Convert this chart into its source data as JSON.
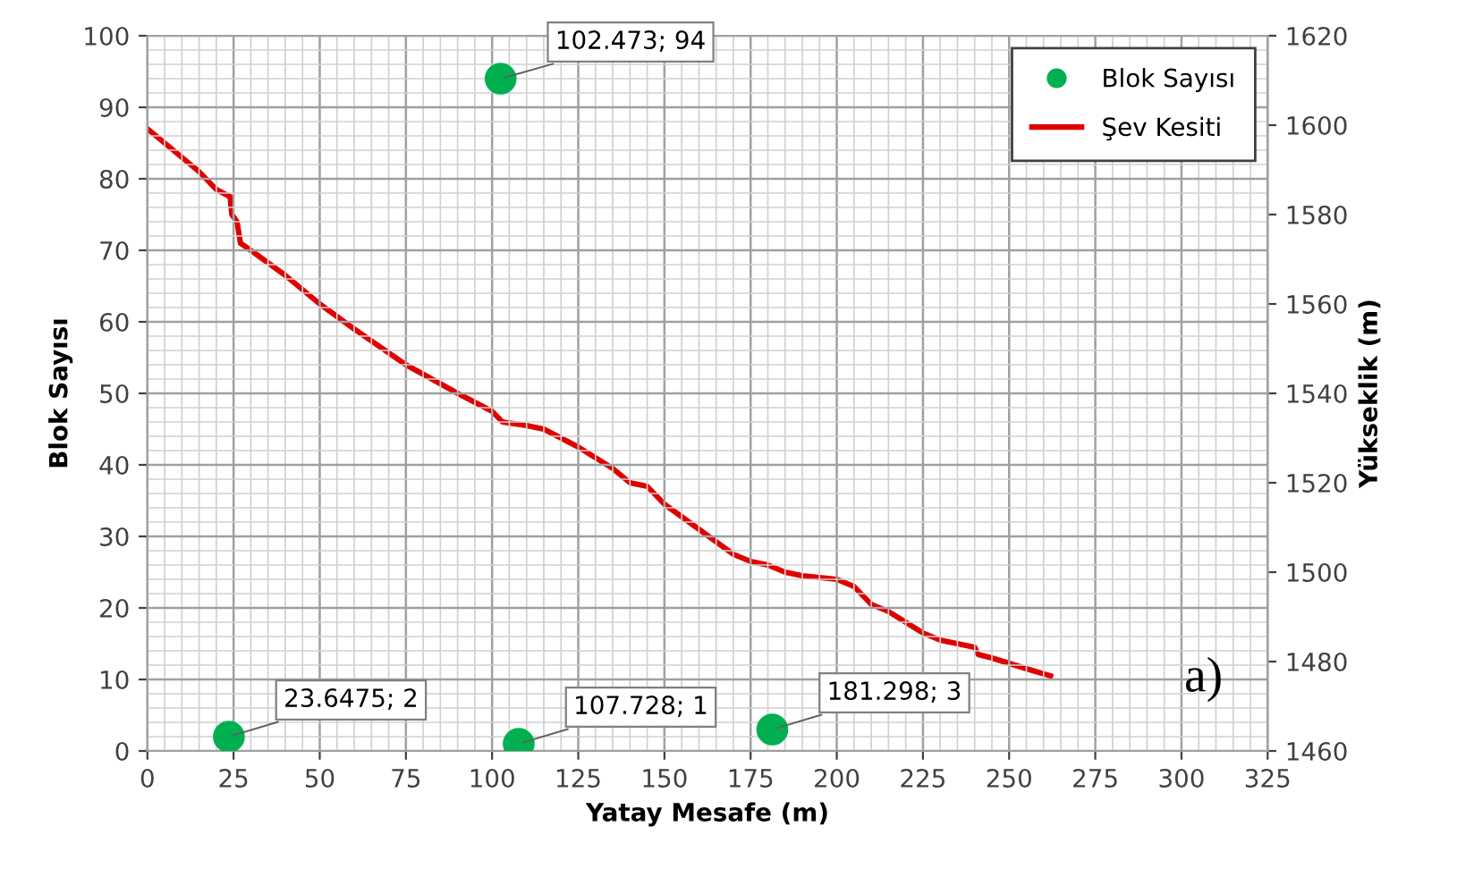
{
  "chart_data": {
    "type": "scatter",
    "xlabel": "Yatay Mesafe (m)",
    "ylabel": "Blok Sayısı",
    "y2label": "Yükseklik (m)",
    "xlim": [
      0,
      325
    ],
    "xticks": [
      0,
      25,
      50,
      75,
      100,
      125,
      150,
      175,
      200,
      225,
      250,
      275,
      300,
      325
    ],
    "ylim": [
      0,
      100
    ],
    "yticks": [
      0,
      10,
      20,
      30,
      40,
      50,
      60,
      70,
      80,
      90,
      100
    ],
    "y2lim": [
      1460,
      1620
    ],
    "y2ticks": [
      1460,
      1480,
      1500,
      1520,
      1540,
      1560,
      1580,
      1600,
      1620
    ],
    "grid": true,
    "legend": "top right",
    "annotations": [
      "a)"
    ],
    "series": [
      {
        "name": "Blok Sayısı",
        "color": "#00b050",
        "marker": "circle",
        "x": [
          23.6475,
          102.473,
          107.728,
          181.298
        ],
        "values": [
          2,
          94,
          1,
          3
        ],
        "value_labels": [
          "23.6475; 2",
          "102.473; 94",
          "107.728; 1",
          "181.298; 3"
        ]
      },
      {
        "name": "Şev Kesiti",
        "type": "line",
        "axis": "y2",
        "color": "#e00000",
        "marker": "none",
        "line_style": "solid",
        "x": [
          0,
          5,
          10,
          15,
          20,
          24,
          24.5,
          26,
          27,
          30,
          40,
          50,
          60,
          75,
          90,
          100,
          103,
          110,
          115,
          125,
          135,
          140,
          145,
          150,
          160,
          170,
          175,
          180,
          185,
          190,
          200,
          205,
          210,
          215,
          225,
          230,
          240,
          241,
          245,
          255,
          262
        ],
        "values": [
          1599.2,
          1596,
          1592.8,
          1589.6,
          1585.6,
          1584,
          1580,
          1578.4,
          1573.6,
          1572,
          1566.4,
          1560,
          1554.4,
          1546.4,
          1540,
          1536,
          1533.6,
          1532.8,
          1532,
          1528,
          1523.2,
          1520,
          1519.2,
          1515.2,
          1509.6,
          1504,
          1502.4,
          1501.6,
          1500,
          1499.2,
          1498.4,
          1496.8,
          1492.8,
          1491.2,
          1486.4,
          1484.8,
          1483.2,
          1481.6,
          1480.8,
          1478.4,
          1476.8
        ]
      }
    ]
  }
}
